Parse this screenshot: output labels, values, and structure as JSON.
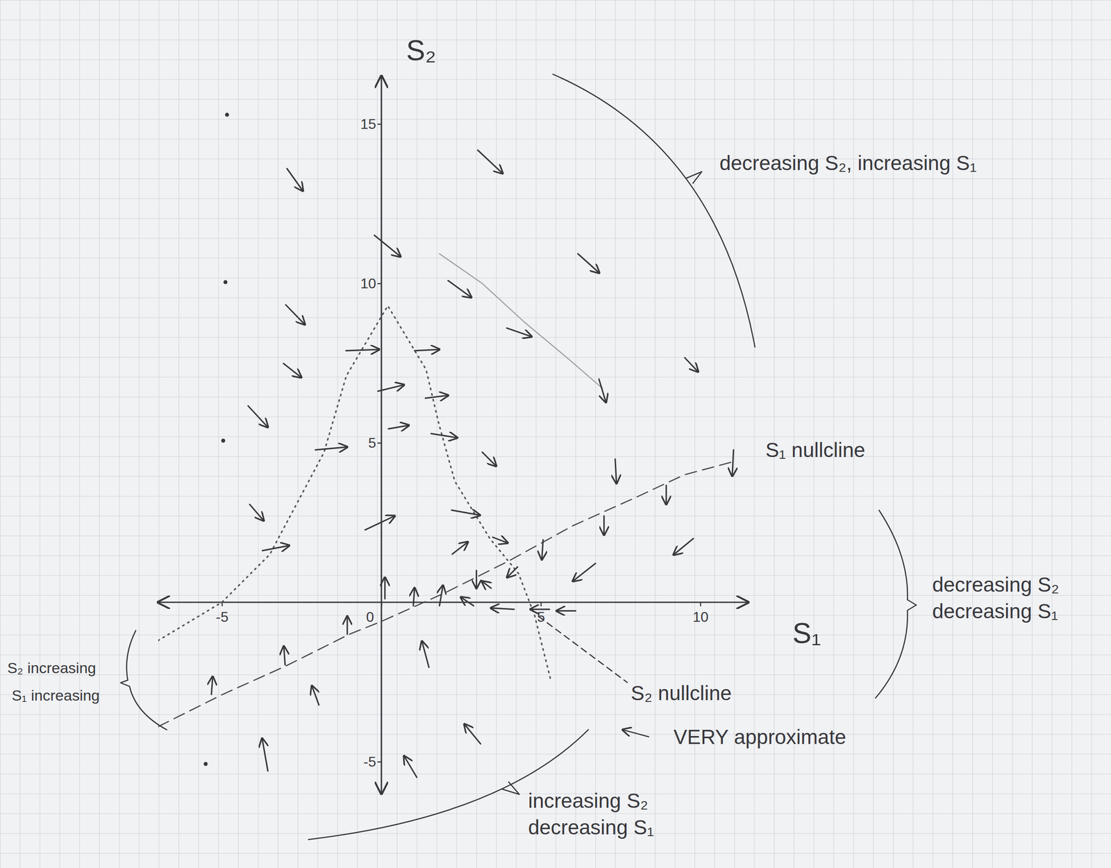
{
  "chart_data": {
    "type": "vector_field",
    "x_label": "S₁",
    "y_label": "S₂",
    "xlim": [
      -7,
      11.5
    ],
    "ylim": [
      -6,
      16.5
    ],
    "xticks": [
      -5,
      0,
      5,
      10
    ],
    "yticks": [
      -5,
      5,
      10,
      15
    ],
    "x": [
      -2.96,
      3.02,
      -0.22,
      6.16,
      2.09,
      -3.0,
      3.93,
      9.51,
      -3.07,
      -1.11,
      1.04,
      -0.11,
      1.38,
      6.82,
      -4.18,
      0.22,
      1.56,
      -2.07,
      3.16,
      7.33,
      11.04,
      8.93,
      -4.13,
      -0.51,
      2.2,
      6.98,
      -3.73,
      2.22,
      3.49,
      5.07,
      9.78,
      2.98,
      3.44,
      4.27,
      6.71,
      0.11,
      1.0,
      1.82,
      2.89,
      4.16,
      5.27,
      6.09,
      -1.07,
      -3.02,
      -5.33,
      1.49,
      -1.96,
      3.11,
      -3.56,
      1.11
    ],
    "y": [
      13.6,
      14.18,
      11.51,
      10.93,
      10.09,
      9.33,
      8.6,
      7.67,
      7.49,
      7.89,
      7.89,
      6.62,
      6.4,
      7.0,
      6.16,
      5.44,
      5.29,
      4.78,
      4.71,
      4.49,
      4.78,
      3.67,
      3.07,
      2.27,
      2.89,
      2.71,
      1.62,
      1.51,
      2.04,
      1.96,
      2.0,
      1.0,
      0.44,
      1.11,
      1.22,
      0.11,
      -0.11,
      -0.11,
      -0.11,
      -0.22,
      -0.22,
      -0.27,
      -1.0,
      -1.96,
      -2.89,
      -2.04,
      -3.22,
      -4.44,
      -5.29,
      -5.49
    ],
    "u": [
      0.5,
      0.78,
      0.82,
      0.67,
      0.73,
      0.6,
      0.78,
      0.42,
      0.56,
      1.04,
      0.78,
      0.82,
      0.71,
      0.22,
      0.62,
      0.64,
      0.82,
      1.0,
      0.44,
      0.04,
      -0.04,
      0,
      0.44,
      0.93,
      0.89,
      0,
      0.84,
      0.49,
      0.47,
      -0.04,
      -0.62,
      0,
      -0.29,
      -0.33,
      -0.71,
      0,
      0.04,
      0.11,
      -0.4,
      -0.73,
      -0.6,
      -0.6,
      0,
      -0.04,
      0.04,
      -0.22,
      -0.22,
      -0.51,
      -0.18,
      -0.4
    ],
    "v": [
      -0.7,
      -0.73,
      -0.67,
      -0.6,
      -0.53,
      -0.62,
      -0.27,
      -0.44,
      -0.44,
      0.04,
      0.04,
      0.2,
      0.09,
      -0.73,
      -0.67,
      0.11,
      -0.13,
      0.09,
      -0.44,
      -0.76,
      -0.82,
      -0.6,
      -0.51,
      0.44,
      -0.16,
      -0.6,
      0.16,
      0.38,
      -0.18,
      -0.62,
      -0.51,
      -0.56,
      0.22,
      -0.33,
      -0.56,
      0.67,
      0.56,
      0.64,
      0.27,
      0.04,
      0,
      0,
      0.56,
      0.58,
      0.56,
      0.82,
      0.6,
      0.62,
      1.02,
      0.67
    ],
    "series": [
      {
        "type": "line",
        "line_style": "dashed",
        "color": "#4a4a4e",
        "x": [
          -7,
          -5,
          -3,
          -1,
          0,
          2,
          4,
          6,
          8,
          9.5,
          11
        ],
        "values": [
          -3.9,
          -2.9,
          -2.0,
          -1.0,
          -0.6,
          0.3,
          1.3,
          2.4,
          3.3,
          4.0,
          4.4
        ]
      },
      {
        "type": "line",
        "line_style": "dotted",
        "color": "#55555a",
        "x": [
          -7,
          -5,
          -3.5,
          -1.8,
          -1.1,
          0.2,
          1.4,
          1.8,
          2.3,
          3.4,
          4.3,
          4.8,
          5.3
        ],
        "values": [
          -1.2,
          0,
          1.5,
          4.7,
          7.1,
          9.3,
          7.3,
          5.6,
          3.8,
          2.0,
          0.9,
          -0.4,
          -2.4
        ]
      },
      {
        "type": "line",
        "line_style": "solid",
        "color": "#a2a3a8",
        "x": [
          1.82,
          3.16,
          4.49,
          5.82,
          6.93
        ],
        "values": [
          10.93,
          10.0,
          8.78,
          7.67,
          6.71
        ]
      }
    ],
    "dots": {
      "x": [
        -4.84,
        -4.89,
        -4.96,
        -5.51
      ],
      "y": [
        15.29,
        10.04,
        5.07,
        -5.07
      ]
    },
    "annotations": [
      {
        "lines": [
          "decreasing S₂, increasing S₁"
        ],
        "x": 10.6,
        "y": 13.56
      },
      {
        "lines": [
          "S₁ nullcline"
        ],
        "x": 12.04,
        "y": 4.56
      },
      {
        "lines": [
          "decreasing S₂",
          "decreasing S₁"
        ],
        "x": 17.27,
        "y": 0.33
      },
      {
        "lines": [
          "S₂ nullcline"
        ],
        "x": 7.82,
        "y": -3.07
      },
      {
        "lines": [
          "VERY approximate"
        ],
        "x": 9.16,
        "y": -4.44
      },
      {
        "lines": [
          "increasing S₂",
          "decreasing S₁"
        ],
        "x": 4.6,
        "y": -6.44
      },
      {
        "lines": [
          "S₂ increasing",
          "S₁ increasing"
        ],
        "x": -11.73,
        "y": -2.22
      }
    ]
  }
}
